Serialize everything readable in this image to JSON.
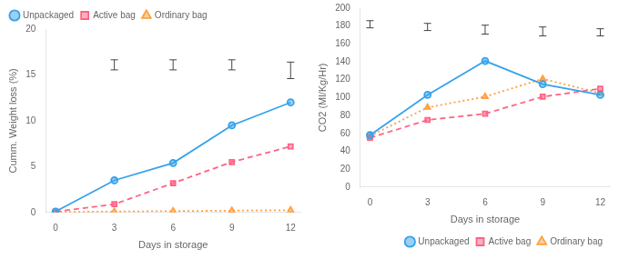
{
  "chart_data": [
    {
      "type": "line",
      "xlabel": "Days in storage",
      "ylabel": "Cumm. Weight loss (%)",
      "x": [
        0,
        3,
        6,
        9,
        12
      ],
      "series": [
        {
          "name": "Unpackaged",
          "values": [
            0.1,
            3.5,
            5.4,
            9.5,
            12.0
          ],
          "marker": "circle",
          "line_style": "solid"
        },
        {
          "name": "Active bag",
          "values": [
            0.1,
            0.9,
            3.2,
            5.5,
            7.2
          ],
          "marker": "square",
          "line_style": "dashed"
        },
        {
          "name": "Ordinary bag",
          "values": [
            0.05,
            0.1,
            0.15,
            0.2,
            0.25
          ],
          "marker": "triangle",
          "line_style": "dotted"
        }
      ],
      "lsd_bars": {
        "x": [
          3,
          6,
          9,
          12
        ],
        "y": [
          16.1,
          16.1,
          16.1,
          15.5
        ],
        "error": [
          0.55,
          0.55,
          0.55,
          0.9
        ]
      },
      "xlim": [
        -0.5,
        12.5
      ],
      "xticks": [
        0,
        3,
        6,
        9,
        12
      ],
      "ylim": [
        0,
        20
      ],
      "yticks": [
        0,
        5,
        10,
        15,
        20
      ],
      "legend": "center left",
      "grid": false
    },
    {
      "type": "line",
      "xlabel": "Days in storage",
      "ylabel": "CO2 (Ml/Kg/Hr)",
      "x": [
        0,
        3,
        6,
        9,
        12
      ],
      "series": [
        {
          "name": "Unpackaged",
          "values": [
            58,
            103,
            141,
            115,
            103
          ],
          "marker": "circle",
          "line_style": "solid"
        },
        {
          "name": "Active bag",
          "values": [
            55,
            75,
            82,
            101,
            110
          ],
          "marker": "square",
          "line_style": "dashed"
        },
        {
          "name": "Ordinary bag",
          "values": [
            57,
            89,
            101,
            121,
            105
          ],
          "marker": "triangle",
          "line_style": "dotted"
        }
      ],
      "lsd_bars": {
        "x": [
          0,
          3,
          6,
          9,
          12
        ],
        "y": [
          182,
          179,
          176,
          174,
          173
        ],
        "error": [
          4,
          4,
          5,
          5,
          4
        ]
      },
      "xlim": [
        -0.5,
        12.5
      ],
      "xticks": [
        0,
        3,
        6,
        9,
        12
      ],
      "ylim": [
        0,
        200
      ],
      "yticks": [
        0,
        20,
        40,
        60,
        80,
        100,
        120,
        140,
        160,
        180,
        200
      ],
      "legend": "lower right",
      "grid": false
    }
  ]
}
